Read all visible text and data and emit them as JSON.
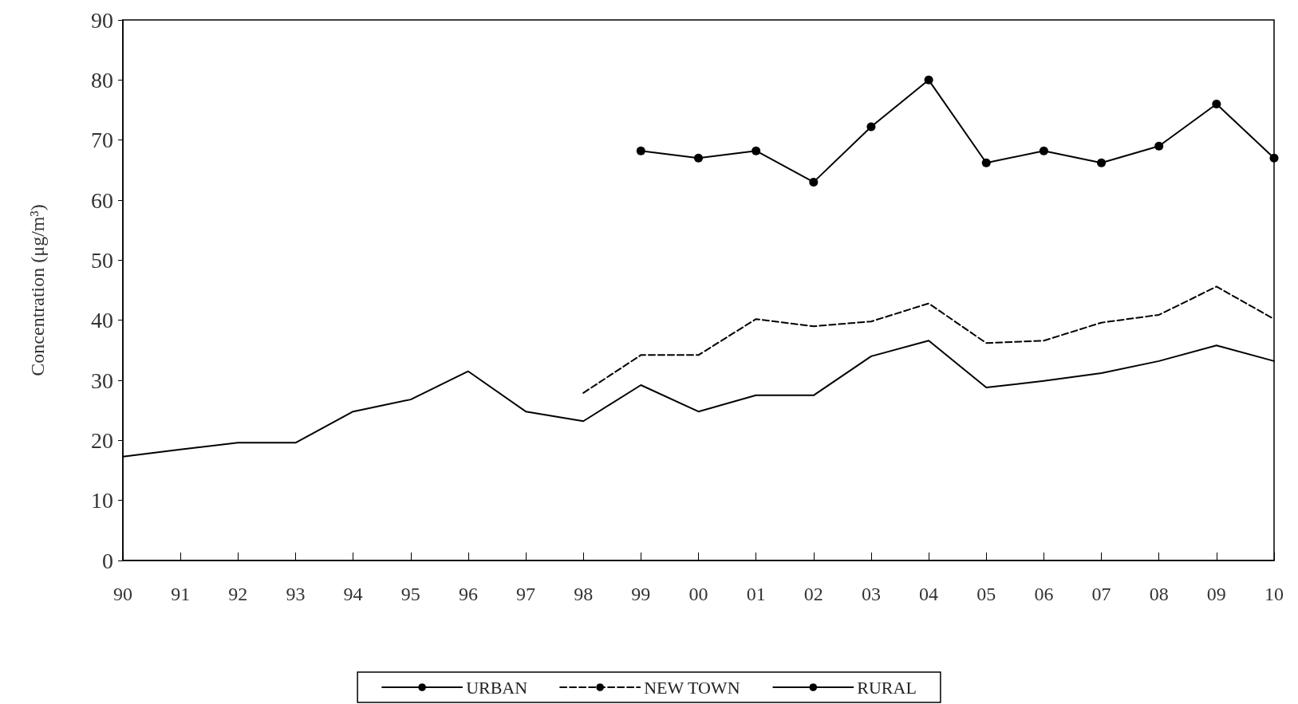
{
  "chart_data": {
    "type": "line",
    "ylabel": "Concentration (μg/m³)",
    "categories": [
      "90",
      "91",
      "92",
      "93",
      "94",
      "95",
      "96",
      "97",
      "98",
      "99",
      "00",
      "01",
      "02",
      "03",
      "04",
      "05",
      "06",
      "07",
      "08",
      "09",
      "10"
    ],
    "ylim": [
      0,
      90
    ],
    "yticks": [
      0,
      10,
      20,
      30,
      40,
      50,
      60,
      70,
      80,
      90
    ],
    "grid": false,
    "legend": "bottom",
    "series": [
      {
        "name": "URBAN",
        "color": "#000000",
        "marker": "none",
        "line_style": "solid",
        "values": [
          17.3,
          18.5,
          19.6,
          19.6,
          24.8,
          26.8,
          31.5,
          24.8,
          23.2,
          29.2,
          24.8,
          27.5,
          27.5,
          34.0,
          36.6,
          28.8,
          29.9,
          31.2,
          33.2,
          35.8,
          33.2
        ]
      },
      {
        "name": "NEW TOWN",
        "color": "#000000",
        "marker": "none",
        "line_style": "dashed",
        "values": [
          null,
          null,
          null,
          null,
          null,
          null,
          null,
          null,
          27.9,
          34.2,
          34.2,
          40.2,
          39.0,
          39.8,
          42.8,
          36.2,
          36.6,
          39.6,
          40.9,
          45.6,
          40.2
        ]
      },
      {
        "name": "RURAL",
        "color": "#000000",
        "marker": "circle",
        "line_style": "solid",
        "values": [
          null,
          null,
          null,
          null,
          null,
          null,
          null,
          null,
          null,
          68.2,
          67.0,
          68.2,
          63.0,
          72.2,
          80.0,
          66.2,
          68.2,
          66.2,
          69.0,
          76.0,
          67.0
        ]
      }
    ]
  }
}
